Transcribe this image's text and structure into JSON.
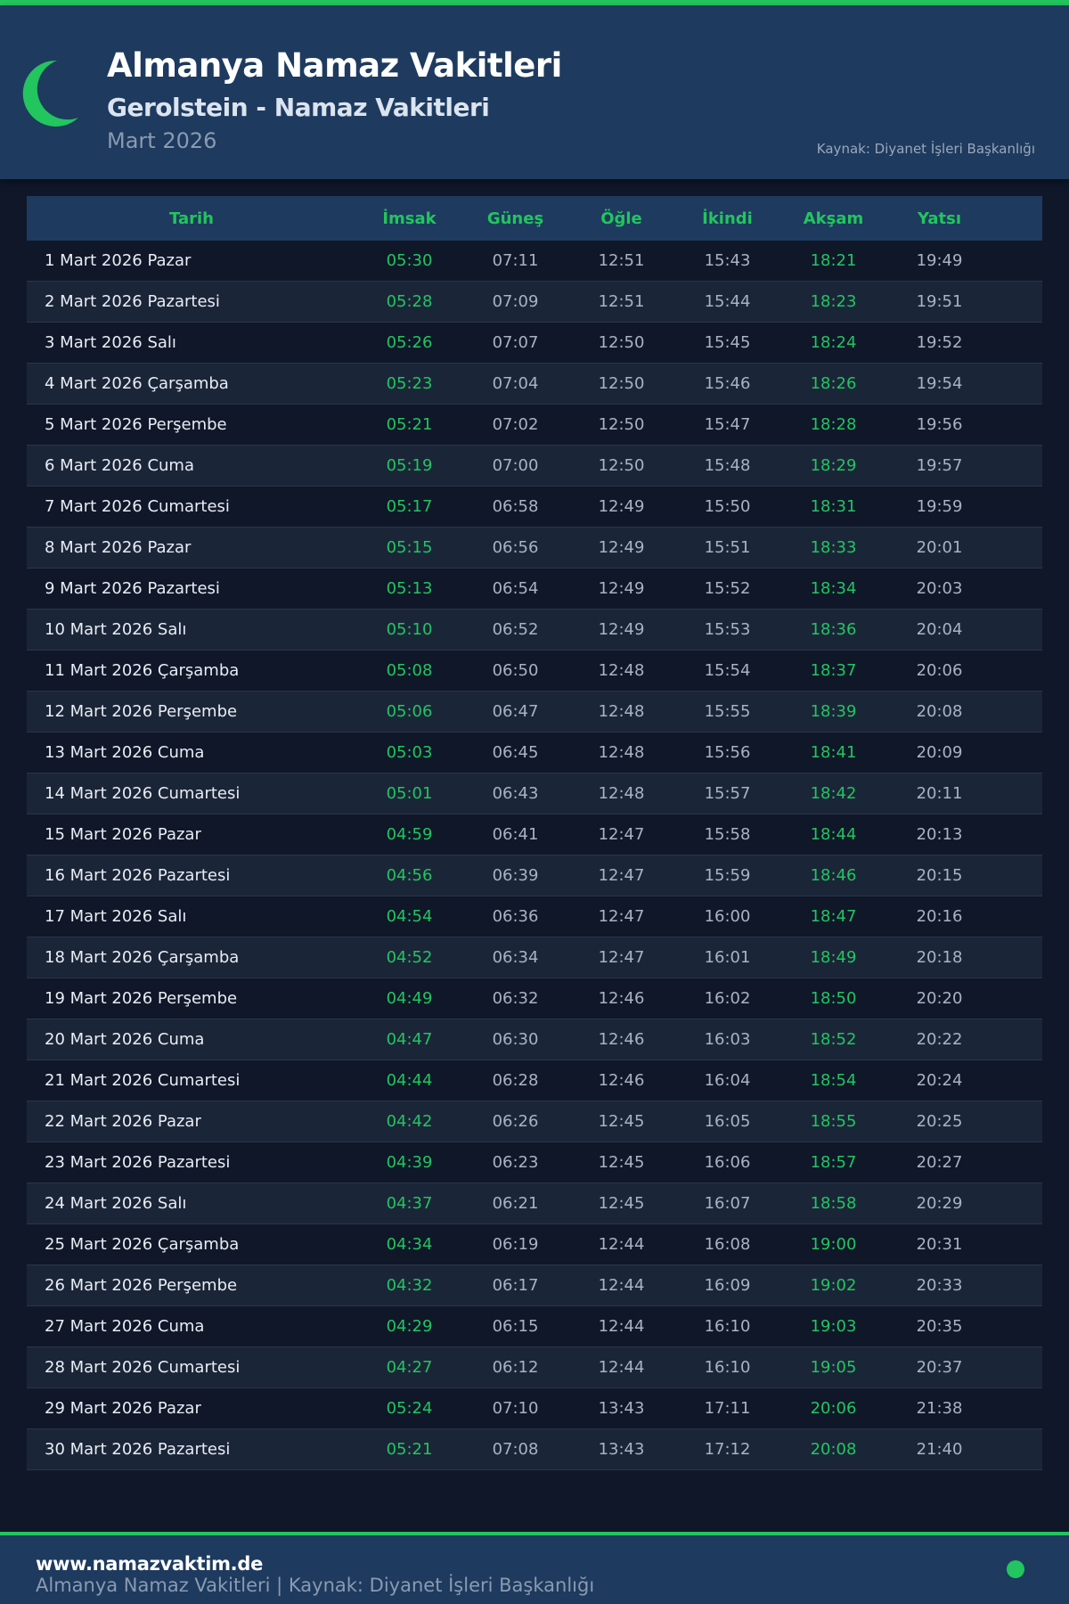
{
  "header": {
    "title": "Almanya Namaz Vakitleri",
    "subtitle": "Gerolstein - Namaz Vakitleri",
    "month": "Mart 2026",
    "source": "Kaynak: Diyanet İşleri Başkanlığı",
    "logo_icon": "crescent-moon-icon"
  },
  "colors": {
    "accent": "#22c55e",
    "header_bg": "#1e3a5f",
    "page_bg": "#0f1729"
  },
  "table": {
    "columns": [
      "Tarih",
      "İmsak",
      "Güneş",
      "Öğle",
      "İkindi",
      "Akşam",
      "Yatsı"
    ],
    "rows": [
      [
        "1 Mart 2026 Pazar",
        "05:30",
        "07:11",
        "12:51",
        "15:43",
        "18:21",
        "19:49"
      ],
      [
        "2 Mart 2026 Pazartesi",
        "05:28",
        "07:09",
        "12:51",
        "15:44",
        "18:23",
        "19:51"
      ],
      [
        "3 Mart 2026 Salı",
        "05:26",
        "07:07",
        "12:50",
        "15:45",
        "18:24",
        "19:52"
      ],
      [
        "4 Mart 2026 Çarşamba",
        "05:23",
        "07:04",
        "12:50",
        "15:46",
        "18:26",
        "19:54"
      ],
      [
        "5 Mart 2026 Perşembe",
        "05:21",
        "07:02",
        "12:50",
        "15:47",
        "18:28",
        "19:56"
      ],
      [
        "6 Mart 2026 Cuma",
        "05:19",
        "07:00",
        "12:50",
        "15:48",
        "18:29",
        "19:57"
      ],
      [
        "7 Mart 2026 Cumartesi",
        "05:17",
        "06:58",
        "12:49",
        "15:50",
        "18:31",
        "19:59"
      ],
      [
        "8 Mart 2026 Pazar",
        "05:15",
        "06:56",
        "12:49",
        "15:51",
        "18:33",
        "20:01"
      ],
      [
        "9 Mart 2026 Pazartesi",
        "05:13",
        "06:54",
        "12:49",
        "15:52",
        "18:34",
        "20:03"
      ],
      [
        "10 Mart 2026 Salı",
        "05:10",
        "06:52",
        "12:49",
        "15:53",
        "18:36",
        "20:04"
      ],
      [
        "11 Mart 2026 Çarşamba",
        "05:08",
        "06:50",
        "12:48",
        "15:54",
        "18:37",
        "20:06"
      ],
      [
        "12 Mart 2026 Perşembe",
        "05:06",
        "06:47",
        "12:48",
        "15:55",
        "18:39",
        "20:08"
      ],
      [
        "13 Mart 2026 Cuma",
        "05:03",
        "06:45",
        "12:48",
        "15:56",
        "18:41",
        "20:09"
      ],
      [
        "14 Mart 2026 Cumartesi",
        "05:01",
        "06:43",
        "12:48",
        "15:57",
        "18:42",
        "20:11"
      ],
      [
        "15 Mart 2026 Pazar",
        "04:59",
        "06:41",
        "12:47",
        "15:58",
        "18:44",
        "20:13"
      ],
      [
        "16 Mart 2026 Pazartesi",
        "04:56",
        "06:39",
        "12:47",
        "15:59",
        "18:46",
        "20:15"
      ],
      [
        "17 Mart 2026 Salı",
        "04:54",
        "06:36",
        "12:47",
        "16:00",
        "18:47",
        "20:16"
      ],
      [
        "18 Mart 2026 Çarşamba",
        "04:52",
        "06:34",
        "12:47",
        "16:01",
        "18:49",
        "20:18"
      ],
      [
        "19 Mart 2026 Perşembe",
        "04:49",
        "06:32",
        "12:46",
        "16:02",
        "18:50",
        "20:20"
      ],
      [
        "20 Mart 2026 Cuma",
        "04:47",
        "06:30",
        "12:46",
        "16:03",
        "18:52",
        "20:22"
      ],
      [
        "21 Mart 2026 Cumartesi",
        "04:44",
        "06:28",
        "12:46",
        "16:04",
        "18:54",
        "20:24"
      ],
      [
        "22 Mart 2026 Pazar",
        "04:42",
        "06:26",
        "12:45",
        "16:05",
        "18:55",
        "20:25"
      ],
      [
        "23 Mart 2026 Pazartesi",
        "04:39",
        "06:23",
        "12:45",
        "16:06",
        "18:57",
        "20:27"
      ],
      [
        "24 Mart 2026 Salı",
        "04:37",
        "06:21",
        "12:45",
        "16:07",
        "18:58",
        "20:29"
      ],
      [
        "25 Mart 2026 Çarşamba",
        "04:34",
        "06:19",
        "12:44",
        "16:08",
        "19:00",
        "20:31"
      ],
      [
        "26 Mart 2026 Perşembe",
        "04:32",
        "06:17",
        "12:44",
        "16:09",
        "19:02",
        "20:33"
      ],
      [
        "27 Mart 2026 Cuma",
        "04:29",
        "06:15",
        "12:44",
        "16:10",
        "19:03",
        "20:35"
      ],
      [
        "28 Mart 2026 Cumartesi",
        "04:27",
        "06:12",
        "12:44",
        "16:10",
        "19:05",
        "20:37"
      ],
      [
        "29 Mart 2026 Pazar",
        "05:24",
        "07:10",
        "13:43",
        "17:11",
        "20:06",
        "21:38"
      ],
      [
        "30 Mart 2026 Pazartesi",
        "05:21",
        "07:08",
        "13:43",
        "17:12",
        "20:08",
        "21:40"
      ]
    ]
  },
  "footer": {
    "url": "www.namazvaktim.de",
    "text": "Almanya Namaz Vakitleri | Kaynak: Diyanet İşleri Başkanlığı"
  }
}
